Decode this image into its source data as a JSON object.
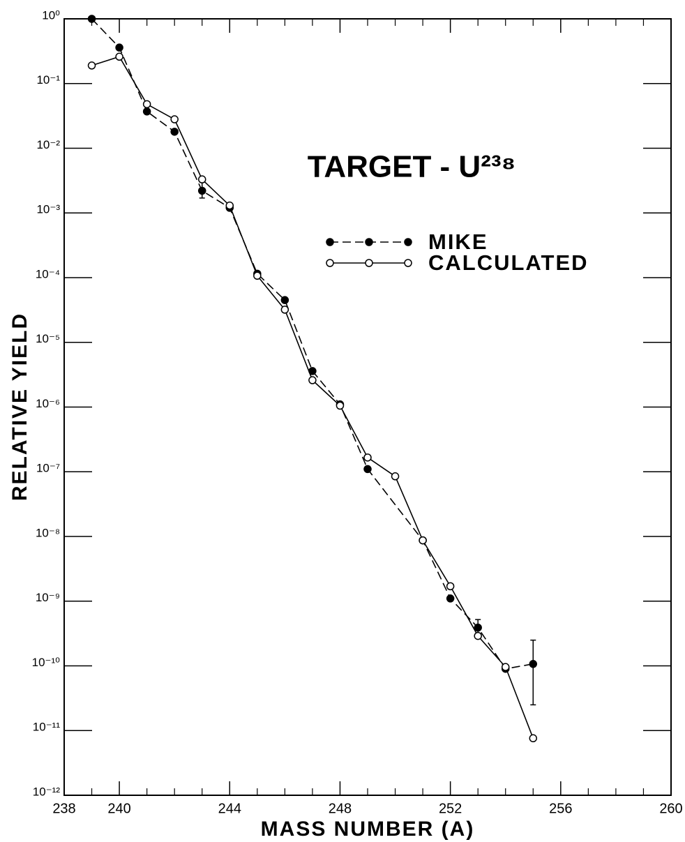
{
  "chart_data": {
    "type": "line",
    "title": "TARGET - U²³⁸",
    "xlabel": "MASS NUMBER (A)",
    "ylabel": "RELATIVE YIELD",
    "log_y": true,
    "xlim": [
      238,
      260
    ],
    "ylim": [
      1e-12,
      1
    ],
    "xticks": [
      238,
      240,
      244,
      248,
      252,
      256,
      260
    ],
    "xticks_minor": [
      239,
      241,
      242,
      243,
      245,
      246,
      247,
      249,
      250,
      251,
      253,
      254,
      255,
      257,
      258,
      259
    ],
    "yticks": [
      {
        "value": 1,
        "label": "10⁰"
      },
      {
        "value": 0.1,
        "label": "10⁻¹"
      },
      {
        "value": 0.01,
        "label": "10⁻²"
      },
      {
        "value": 0.001,
        "label": "10⁻³"
      },
      {
        "value": 0.0001,
        "label": "10⁻⁴"
      },
      {
        "value": 1e-05,
        "label": "10⁻⁵"
      },
      {
        "value": 1e-06,
        "label": "10⁻⁶"
      },
      {
        "value": 1e-07,
        "label": "10⁻⁷"
      },
      {
        "value": 1e-08,
        "label": "10⁻⁸"
      },
      {
        "value": 1e-09,
        "label": "10⁻⁹"
      },
      {
        "value": 1e-10,
        "label": "10⁻¹⁰"
      },
      {
        "value": 1e-11,
        "label": "10⁻¹¹"
      },
      {
        "value": 1e-12,
        "label": "10⁻¹²"
      }
    ],
    "series": [
      {
        "name": "MIKE",
        "color": "#000000",
        "marker": "filled",
        "linestyle": "dashed",
        "x": [
          239,
          240,
          241,
          242,
          243,
          244,
          245,
          246,
          247,
          248,
          249,
          251,
          252,
          253,
          254,
          255
        ],
        "values": [
          1.0,
          0.36,
          0.037,
          0.018,
          0.0022,
          0.0012,
          0.000115,
          4.5e-05,
          3.6e-06,
          1.1e-06,
          1.1e-07,
          8.7e-09,
          1.1e-09,
          3.9e-10,
          9e-11,
          1.07e-10
        ],
        "yerr_low": [
          null,
          null,
          null,
          null,
          0.0017,
          null,
          null,
          null,
          null,
          null,
          null,
          null,
          null,
          3e-10,
          null,
          2.5e-11
        ],
        "yerr_high": [
          null,
          null,
          null,
          null,
          0.003,
          null,
          null,
          null,
          null,
          null,
          null,
          null,
          null,
          5.2e-10,
          null,
          2.5e-10
        ]
      },
      {
        "name": "CALCULATED",
        "color": "#000000",
        "marker": "open",
        "linestyle": "solid",
        "x": [
          239,
          240,
          241,
          242,
          243,
          244,
          245,
          246,
          247,
          248,
          249,
          250,
          251,
          252,
          253,
          254,
          255
        ],
        "values": [
          0.19,
          0.26,
          0.048,
          0.028,
          0.0033,
          0.0013,
          0.000107,
          3.2e-05,
          2.6e-06,
          1.05e-06,
          1.66e-07,
          8.5e-08,
          8.7e-09,
          1.7e-09,
          2.9e-10,
          9.6e-11,
          7.6e-12
        ]
      }
    ]
  }
}
